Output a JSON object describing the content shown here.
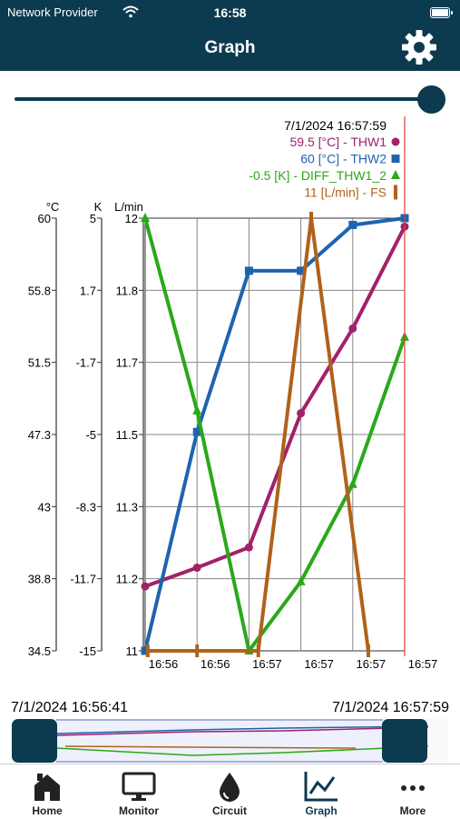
{
  "status_bar": {
    "carrier": "Network Provider",
    "time": "16:58"
  },
  "header": {
    "title": "Graph",
    "settings_icon": "gear-icon"
  },
  "time_slider": {
    "value": 1.0
  },
  "legend": {
    "timestamp": "7/1/2024 16:57:59",
    "entries": [
      {
        "text": "59.5 [°C] - THW1",
        "color": "#a0226a",
        "marker": "circle"
      },
      {
        "text": "60 [°C] - THW2",
        "color": "#1e63b0",
        "marker": "square"
      },
      {
        "text": "-0.5 [K] - DIFF_THW1_2",
        "color": "#2aa81a",
        "marker": "triangle"
      },
      {
        "text": "11 [L/min] - FS",
        "color": "#b0621a",
        "marker": "bar"
      }
    ]
  },
  "chart_data": {
    "type": "line",
    "x_ticks": [
      "16:56",
      "16:56",
      "16:57",
      "16:57",
      "16:57",
      "16:57"
    ],
    "axes": [
      {
        "unit": "°C",
        "ticks": [
          "60",
          "55.8",
          "51.5",
          "47.3",
          "43",
          "38.8",
          "34.5"
        ],
        "ylim": [
          34.5,
          60
        ]
      },
      {
        "unit": "K",
        "ticks": [
          "5",
          "1.7",
          "-1.7",
          "-5",
          "-8.3",
          "-11.7",
          "-15"
        ],
        "ylim": [
          -15,
          5
        ]
      },
      {
        "unit": "L/min",
        "ticks": [
          "12",
          "11.8",
          "11.7",
          "11.5",
          "11.3",
          "11.2",
          "11"
        ],
        "ylim": [
          11,
          12
        ]
      }
    ],
    "x": [
      0,
      1,
      2,
      3,
      4,
      5
    ],
    "series": [
      {
        "name": "THW1",
        "axis": 0,
        "color": "#a0226a",
        "marker": "circle",
        "x": [
          0,
          1,
          2,
          3,
          4,
          5
        ],
        "y": [
          38.3,
          39.4,
          40.6,
          48.5,
          53.5,
          59.5
        ]
      },
      {
        "name": "THW2",
        "axis": 0,
        "color": "#1e63b0",
        "marker": "square",
        "x": [
          0,
          1,
          2,
          3,
          4,
          5
        ],
        "y": [
          34.5,
          47.4,
          56.9,
          56.9,
          59.6,
          60
        ]
      },
      {
        "name": "DIFF_THW1_2",
        "axis": 1,
        "color": "#2aa81a",
        "marker": "triangle",
        "x": [
          0,
          1,
          2,
          3,
          4,
          5
        ],
        "y": [
          5,
          -3.9,
          -15,
          -11.8,
          -7.3,
          -0.5
        ]
      },
      {
        "name": "FS",
        "axis": 2,
        "color": "#b0621a",
        "marker": "bar",
        "x": [
          0.05,
          1.0,
          2.18,
          3.2,
          4.3
        ],
        "y": [
          11,
          11,
          11,
          12,
          11
        ]
      }
    ],
    "cursor_x": 5,
    "grid": true
  },
  "range_navigator": {
    "start_label": "7/1/2024 16:56:41",
    "end_label": "7/1/2024 16:57:59"
  },
  "tabs": [
    {
      "label": "Home",
      "icon": "home-icon"
    },
    {
      "label": "Monitor",
      "icon": "monitor-icon"
    },
    {
      "label": "Circuit",
      "icon": "drop-icon"
    },
    {
      "label": "Graph",
      "icon": "graph-icon",
      "active": true
    },
    {
      "label": "More",
      "icon": "more-icon"
    }
  ]
}
